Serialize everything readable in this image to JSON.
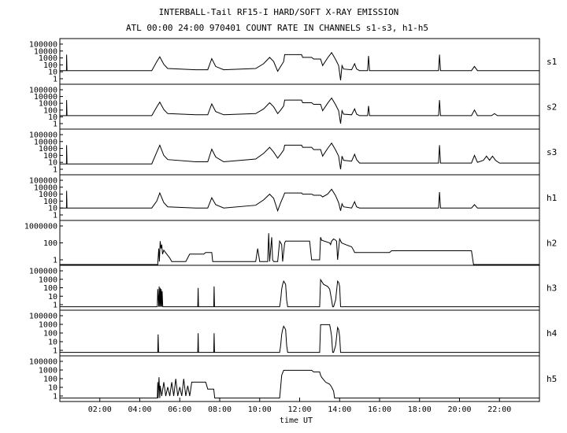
{
  "title": "INTERBALL-Tail RF15-I HARD/SOFT X-RAY EMISSION",
  "subtitle": "ATL 00:00 24:00 970401  COUNT RATE IN CHANNELS s1-s3, h1-h5",
  "chart_data": {
    "type": "line",
    "xlabel": "time UT",
    "xlim": [
      0,
      24
    ],
    "xtick_values": [
      2,
      4,
      6,
      8,
      10,
      12,
      14,
      16,
      18,
      20,
      22
    ],
    "xtick_labels": [
      "02:00",
      "04:00",
      "06:00",
      "08:00",
      "10:00",
      "12:00",
      "14:00",
      "16:00",
      "18:00",
      "20:00",
      "22:00"
    ],
    "yscale": "log",
    "panels": [
      {
        "name": "s1",
        "ylim": [
          1,
          100000
        ],
        "ytick_labels": [
          "100000",
          "10000",
          "1000",
          "100",
          "10",
          "1"
        ],
        "x": [
          0.0,
          0.33,
          0.34,
          0.36,
          4.6,
          4.85,
          5.0,
          5.2,
          5.4,
          6.8,
          7.4,
          7.6,
          7.8,
          8.2,
          9.8,
          10.2,
          10.5,
          10.7,
          10.9,
          11.05,
          11.2,
          11.25,
          11.3,
          12.1,
          12.15,
          12.6,
          12.7,
          13.05,
          13.15,
          13.4,
          13.6,
          13.8,
          13.95,
          14.05,
          14.12,
          14.2,
          14.6,
          14.75,
          14.85,
          15.0,
          15.4,
          15.45,
          15.5,
          18.95,
          19.0,
          19.05,
          20.6,
          20.75,
          20.9,
          24.0
        ],
        "y": [
          15,
          15,
          3000,
          15,
          15,
          300,
          1500,
          120,
          30,
          20,
          20,
          800,
          60,
          20,
          30,
          150,
          1200,
          300,
          12,
          60,
          300,
          3000,
          3000,
          3000,
          1200,
          1200,
          700,
          700,
          80,
          1000,
          6000,
          600,
          80,
          0.6,
          80,
          25,
          20,
          150,
          25,
          15,
          15,
          2000,
          15,
          15,
          3000,
          15,
          15,
          60,
          15,
          15
        ]
      },
      {
        "name": "s2",
        "ylim": [
          1,
          100000
        ],
        "ytick_labels": [
          "100000",
          "10000",
          "1000",
          "100",
          "10",
          "1"
        ],
        "x": [
          0.0,
          0.33,
          0.34,
          0.36,
          4.6,
          4.85,
          5.0,
          5.2,
          5.4,
          6.8,
          7.4,
          7.6,
          7.8,
          8.2,
          9.8,
          10.2,
          10.5,
          10.7,
          10.9,
          11.05,
          11.2,
          11.25,
          11.3,
          12.1,
          12.15,
          12.6,
          12.7,
          13.05,
          13.15,
          13.4,
          13.6,
          13.8,
          13.95,
          14.05,
          14.12,
          14.2,
          14.6,
          14.75,
          14.85,
          15.0,
          15.4,
          15.45,
          15.5,
          18.95,
          19.0,
          19.05,
          20.6,
          20.75,
          20.9,
          21.6,
          21.75,
          21.9,
          24.0
        ],
        "y": [
          15,
          15,
          3000,
          15,
          15,
          300,
          1500,
          120,
          30,
          20,
          20,
          800,
          60,
          20,
          30,
          150,
          1200,
          300,
          30,
          100,
          400,
          3000,
          3000,
          3000,
          1200,
          1200,
          700,
          700,
          80,
          1000,
          6000,
          600,
          80,
          1,
          80,
          25,
          20,
          150,
          25,
          15,
          15,
          400,
          15,
          15,
          3000,
          15,
          15,
          100,
          15,
          15,
          30,
          15,
          15
        ]
      },
      {
        "name": "s3",
        "ylim": [
          1,
          100000
        ],
        "ytick_labels": [
          "100000",
          "10000",
          "1000",
          "100",
          "10",
          "1"
        ],
        "x": [
          0.0,
          0.33,
          0.34,
          0.36,
          4.6,
          4.85,
          5.0,
          5.2,
          5.4,
          6.8,
          7.4,
          7.6,
          7.8,
          8.2,
          9.8,
          10.2,
          10.5,
          10.7,
          10.9,
          11.05,
          11.2,
          11.25,
          11.3,
          12.1,
          12.15,
          12.6,
          12.7,
          13.05,
          13.15,
          13.4,
          13.6,
          13.8,
          13.95,
          14.05,
          14.12,
          14.2,
          14.6,
          14.75,
          14.85,
          15.0,
          18.95,
          19.0,
          19.05,
          20.6,
          20.75,
          20.9,
          21.2,
          21.35,
          21.5,
          21.65,
          21.8,
          22.0,
          24.0
        ],
        "y": [
          6,
          6,
          3000,
          6,
          6,
          300,
          3000,
          100,
          25,
          12,
          12,
          800,
          60,
          12,
          30,
          200,
          1500,
          300,
          40,
          150,
          600,
          3000,
          3000,
          3000,
          1500,
          1500,
          700,
          700,
          80,
          1000,
          6000,
          600,
          80,
          1,
          80,
          20,
          15,
          150,
          25,
          8,
          8,
          3000,
          8,
          8,
          100,
          10,
          20,
          80,
          20,
          80,
          20,
          8,
          8
        ]
      },
      {
        "name": "h1",
        "ylim": [
          1,
          100000
        ],
        "ytick_labels": [
          "100000",
          "10000",
          "1000",
          "100",
          "10",
          "1"
        ],
        "x": [
          0.0,
          0.33,
          0.34,
          0.36,
          4.6,
          4.85,
          5.0,
          5.2,
          5.4,
          6.8,
          7.4,
          7.6,
          7.8,
          8.2,
          9.8,
          10.2,
          10.5,
          10.7,
          10.9,
          11.05,
          11.2,
          11.25,
          11.3,
          12.1,
          12.15,
          12.6,
          12.7,
          13.05,
          13.15,
          13.4,
          13.6,
          13.8,
          13.95,
          14.05,
          14.12,
          14.2,
          14.6,
          14.75,
          14.85,
          15.0,
          18.95,
          19.0,
          19.05,
          20.6,
          20.75,
          20.9,
          24.0
        ],
        "y": [
          10,
          10,
          3000,
          10,
          10,
          100,
          1500,
          60,
          15,
          10,
          10,
          300,
          30,
          10,
          25,
          150,
          1000,
          250,
          4,
          60,
          600,
          1500,
          1500,
          1500,
          1000,
          1000,
          700,
          700,
          400,
          1000,
          5000,
          600,
          60,
          4,
          40,
          15,
          10,
          80,
          15,
          10,
          10,
          2000,
          10,
          10,
          30,
          10,
          10
        ]
      },
      {
        "name": "h2",
        "ylim": [
          1,
          1000000
        ],
        "ytick_labels": [
          "1000000",
          "100",
          "1"
        ],
        "x": [
          0.0,
          4.45,
          4.9,
          4.95,
          4.98,
          5.02,
          5.06,
          5.1,
          5.14,
          5.2,
          5.5,
          5.6,
          6.3,
          6.5,
          7.2,
          7.3,
          7.6,
          7.65,
          9.8,
          9.9,
          10.0,
          10.4,
          10.45,
          10.5,
          10.6,
          10.65,
          10.7,
          10.9,
          11.0,
          11.1,
          11.15,
          11.25,
          11.3,
          11.5,
          12.5,
          12.6,
          13.0,
          13.05,
          13.1,
          13.5,
          13.55,
          13.6,
          13.7,
          13.8,
          13.85,
          13.9,
          14.0,
          14.1,
          14.3,
          14.6,
          14.7,
          14.75,
          14.8,
          16.5,
          16.6,
          20.6,
          20.7,
          24.0
        ],
        "y": [
          0.1,
          0.1,
          0.1,
          100,
          0.5,
          2000,
          100,
          500,
          10,
          50,
          2,
          0.5,
          0.5,
          10,
          10,
          20,
          20,
          0.5,
          0.5,
          100,
          0.5,
          0.5,
          50000,
          0.5,
          10000,
          1,
          0.5,
          0.5,
          2000,
          500,
          0.5,
          1000,
          2000,
          2000,
          2000,
          1,
          1,
          10000,
          3000,
          1000,
          500,
          2000,
          5000,
          3000,
          2000,
          1,
          5000,
          1000,
          500,
          200,
          50,
          20,
          20,
          20,
          40,
          40,
          0.1,
          0.1
        ]
      },
      {
        "name": "h3",
        "ylim": [
          1,
          100000
        ],
        "ytick_labels": [
          "100000",
          "1000",
          "100",
          "10",
          "1"
        ],
        "x": [
          0.0,
          4.88,
          4.9,
          4.95,
          4.97,
          5.0,
          5.02,
          5.05,
          5.07,
          5.1,
          5.12,
          5.15,
          5.17,
          6.9,
          6.92,
          6.94,
          7.7,
          7.72,
          7.74,
          11.0,
          11.05,
          11.1,
          11.15,
          11.2,
          11.3,
          11.35,
          11.4,
          13.0,
          13.05,
          13.2,
          13.4,
          13.5,
          13.6,
          13.65,
          13.7,
          13.8,
          13.9,
          13.95,
          14.0,
          14.05,
          24.0
        ],
        "y": [
          0.5,
          0.5,
          200,
          0.5,
          500,
          0.5,
          300,
          0.5,
          200,
          0.5,
          100,
          0.5,
          0.5,
          0.5,
          300,
          0.5,
          0.5,
          500,
          0.5,
          0.5,
          5,
          200,
          1000,
          3000,
          1000,
          5,
          0.5,
          0.5,
          5000,
          1000,
          500,
          200,
          5,
          0.5,
          0.5,
          5,
          3000,
          2000,
          500,
          0.5,
          0.5
        ]
      },
      {
        "name": "h4",
        "ylim": [
          1,
          100000
        ],
        "ytick_labels": [
          "100000",
          "1000",
          "100",
          "10",
          "1"
        ],
        "x": [
          0.0,
          4.9,
          4.92,
          4.94,
          6.9,
          6.92,
          6.94,
          7.7,
          7.72,
          7.74,
          11.0,
          11.05,
          11.1,
          11.15,
          11.2,
          11.3,
          11.35,
          11.4,
          13.0,
          13.05,
          13.5,
          13.55,
          13.6,
          13.65,
          13.7,
          13.8,
          13.9,
          13.95,
          14.0,
          14.05,
          24.0
        ],
        "y": [
          0.5,
          0.5,
          200,
          0.5,
          0.5,
          300,
          0.5,
          0.5,
          300,
          0.5,
          0.5,
          5,
          200,
          1000,
          3000,
          1000,
          5,
          0.5,
          0.5,
          5000,
          5000,
          1000,
          100,
          0.5,
          0.5,
          5,
          2000,
          1000,
          100,
          0.5,
          0.5
        ]
      },
      {
        "name": "h5",
        "ylim": [
          1,
          100000
        ],
        "ytick_labels": [
          "100000",
          "1000",
          "100",
          "10",
          "1"
        ],
        "x": [
          0.0,
          4.88,
          4.9,
          4.92,
          4.96,
          5.0,
          5.02,
          5.1,
          5.2,
          5.3,
          5.4,
          5.5,
          5.6,
          5.7,
          5.8,
          5.9,
          6.0,
          6.1,
          6.2,
          6.3,
          6.4,
          6.5,
          6.6,
          7.0,
          7.3,
          7.4,
          7.6,
          7.7,
          7.75,
          11.0,
          11.05,
          11.1,
          11.2,
          12.6,
          12.7,
          13.0,
          13.05,
          13.1,
          13.3,
          13.5,
          13.6,
          13.7,
          13.75,
          24.0
        ],
        "y": [
          0.5,
          0.5,
          100,
          0.5,
          500,
          0.5,
          30,
          1,
          100,
          1,
          20,
          1,
          100,
          1,
          300,
          1,
          20,
          1,
          300,
          1,
          30,
          1,
          100,
          100,
          100,
          10,
          10,
          10,
          0.5,
          0.5,
          20,
          1000,
          5000,
          5000,
          3000,
          3000,
          1000,
          500,
          100,
          50,
          20,
          5,
          0.5,
          0.5
        ]
      }
    ]
  }
}
